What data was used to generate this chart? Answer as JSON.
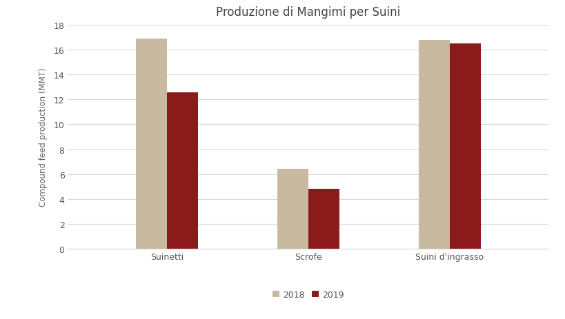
{
  "title": "Produzione di Mangimi per Suini",
  "categories": [
    "Suinetti",
    "Scrofe",
    "Suini d'ingrasso"
  ],
  "values_2018": [
    16.9,
    6.4,
    16.8
  ],
  "values_2019": [
    12.6,
    4.8,
    16.5
  ],
  "color_2018": "#C8BAA0",
  "color_2019": "#8B1A1A",
  "ylabel": "Compound feed production (MMT)",
  "ylim": [
    0,
    18
  ],
  "yticks": [
    0,
    2,
    4,
    6,
    8,
    10,
    12,
    14,
    16,
    18
  ],
  "legend_labels": [
    "2018",
    "2019"
  ],
  "bar_width": 0.22,
  "title_fontsize": 12,
  "label_fontsize": 8.5,
  "tick_fontsize": 9,
  "legend_fontsize": 9,
  "background_color": "#ffffff",
  "grid_color": "#d8d8d8"
}
